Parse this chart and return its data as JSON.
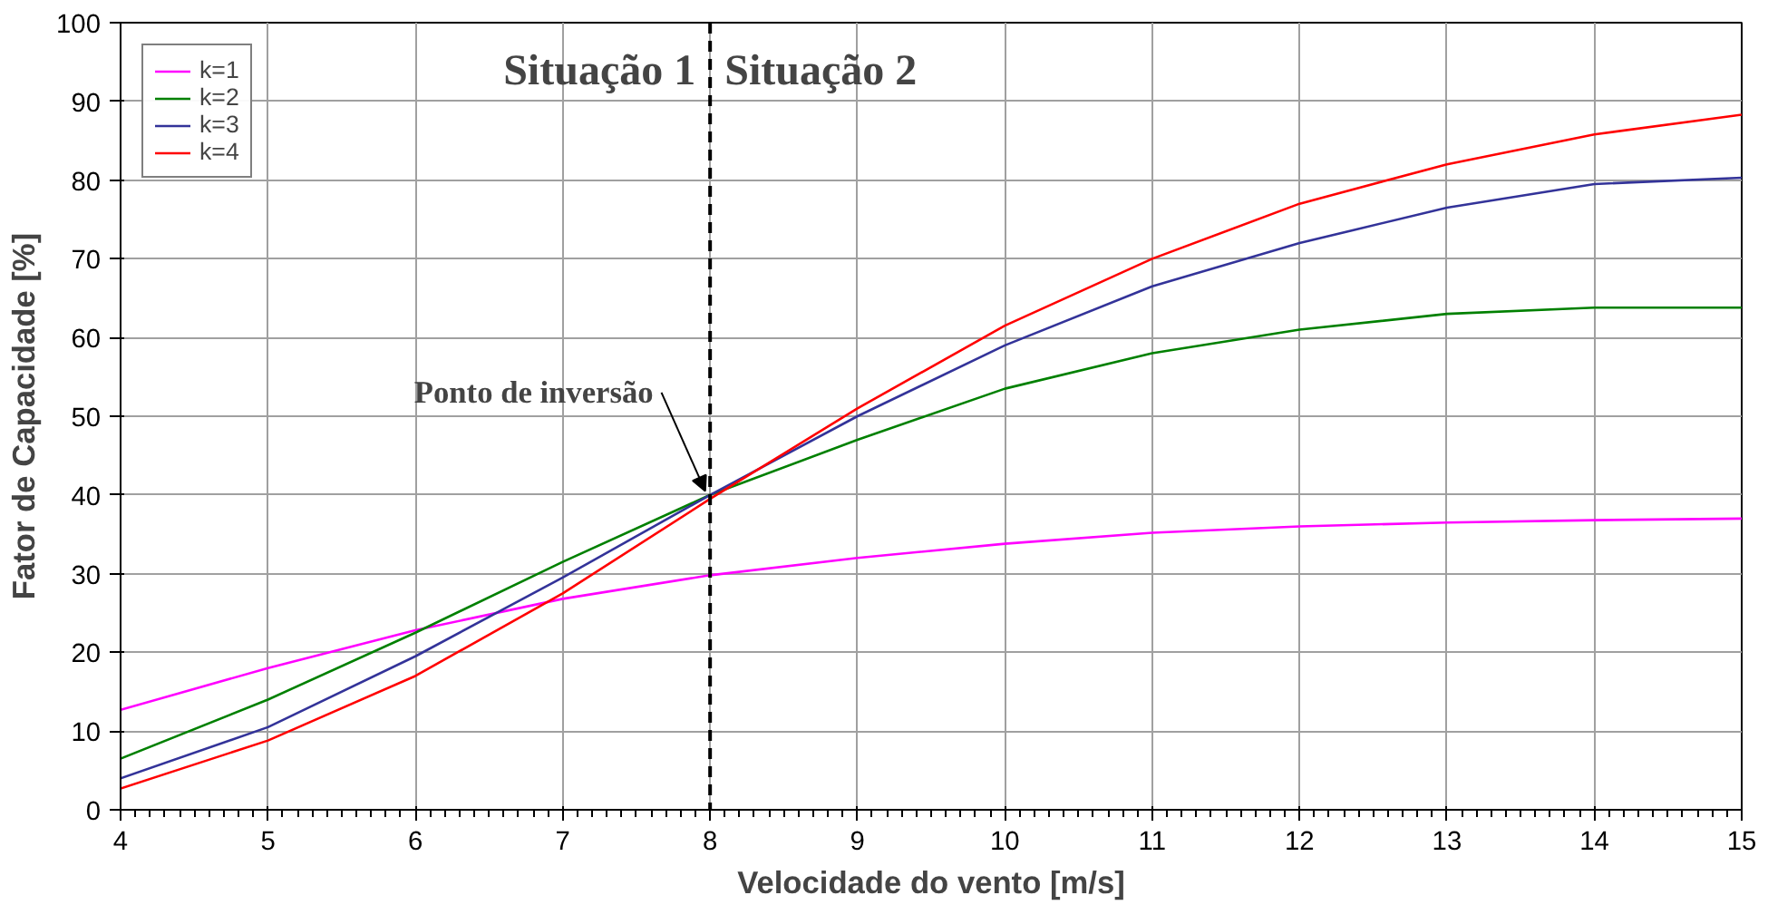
{
  "chart_data": {
    "type": "line",
    "xlabel": "Velocidade do vento [m/s]",
    "ylabel": "Fator de Capacidade [%]",
    "x": [
      4,
      5,
      6,
      7,
      8,
      9,
      10,
      11,
      12,
      13,
      14,
      15
    ],
    "series": [
      {
        "name": "k=1",
        "color": "#ff00ff",
        "values": [
          12.7,
          18,
          22.8,
          26.8,
          29.8,
          32,
          33.8,
          35.2,
          36,
          36.5,
          36.8,
          37
        ]
      },
      {
        "name": "k=2",
        "color": "#008000",
        "values": [
          6.5,
          14,
          22.5,
          31.5,
          40,
          47,
          53.5,
          58,
          61,
          63,
          63.8,
          63.8
        ]
      },
      {
        "name": "k=3",
        "color": "#333399",
        "values": [
          4,
          10.5,
          19.5,
          29.5,
          40,
          50,
          59,
          66.5,
          72,
          76.5,
          79.5,
          80.3
        ]
      },
      {
        "name": "k=4",
        "color": "#ff0000",
        "values": [
          2.7,
          8.8,
          17,
          27.5,
          39.5,
          51,
          61.5,
          70,
          77,
          82,
          85.8,
          88.3
        ]
      }
    ],
    "xlim": [
      4,
      15
    ],
    "xticks": [
      4,
      5,
      6,
      7,
      8,
      9,
      10,
      11,
      12,
      13,
      14,
      15
    ],
    "ylim": [
      0,
      100
    ],
    "yticks": [
      0,
      10,
      20,
      30,
      40,
      50,
      60,
      70,
      80,
      90,
      100
    ],
    "grid": true,
    "legend": "top left",
    "marker": "none",
    "line_style": "solid",
    "ref_lines": [
      {
        "axis": "x",
        "value": 8,
        "color": "#000000",
        "line_style": "dashed"
      }
    ],
    "annotations": [
      "Situação 1",
      "Situação 2",
      {
        "text": "Ponto de inversão",
        "x": 8,
        "y": 40
      }
    ]
  }
}
